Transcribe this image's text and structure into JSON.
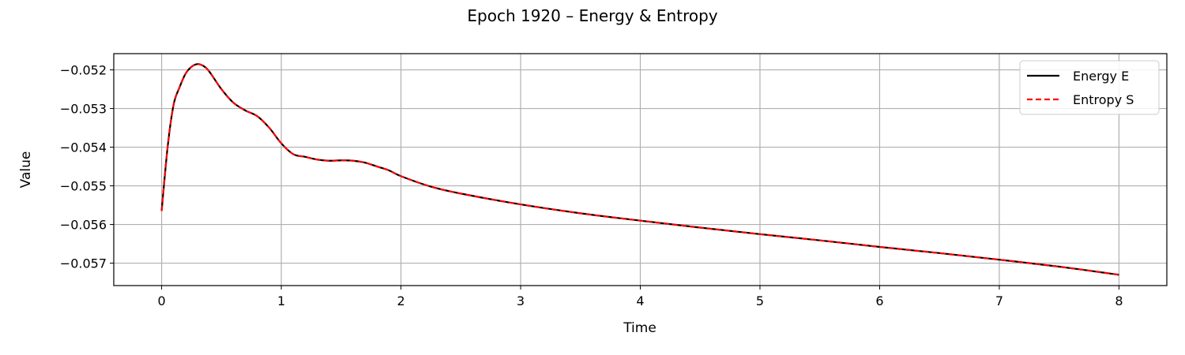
{
  "chart_data": {
    "type": "line",
    "title": "Epoch 1920 – Energy & Entropy",
    "xlabel": "Time",
    "ylabel": "Value",
    "xlim": [
      -0.4,
      8.4
    ],
    "ylim": [
      -0.05758,
      -0.05158
    ],
    "xticks": [
      0,
      1,
      2,
      3,
      4,
      5,
      6,
      7,
      8
    ],
    "xtick_labels": [
      "0",
      "1",
      "2",
      "3",
      "4",
      "5",
      "6",
      "7",
      "8"
    ],
    "yticks": [
      -0.052,
      -0.053,
      -0.054,
      -0.055,
      -0.056,
      -0.057
    ],
    "ytick_labels": [
      "−0.052",
      "−0.053",
      "−0.054",
      "−0.055",
      "−0.056",
      "−0.057"
    ],
    "grid": true,
    "legend_position": "top-right",
    "series": [
      {
        "name": "Energy E",
        "color": "#000000",
        "style": "solid",
        "x": [
          0.0,
          0.05,
          0.1,
          0.15,
          0.2,
          0.25,
          0.3,
          0.35,
          0.4,
          0.5,
          0.6,
          0.7,
          0.8,
          0.9,
          1.0,
          1.1,
          1.2,
          1.3,
          1.4,
          1.5,
          1.6,
          1.7,
          1.8,
          1.9,
          2.0,
          2.25,
          2.5,
          3.0,
          3.5,
          4.0,
          4.5,
          5.0,
          5.5,
          6.0,
          6.5,
          7.0,
          7.5,
          8.0
        ],
        "y": [
          -0.05565,
          -0.054,
          -0.0529,
          -0.05245,
          -0.0521,
          -0.05192,
          -0.05185,
          -0.0519,
          -0.05205,
          -0.0525,
          -0.05285,
          -0.05305,
          -0.0532,
          -0.0535,
          -0.0539,
          -0.05418,
          -0.05425,
          -0.05432,
          -0.05435,
          -0.05434,
          -0.05435,
          -0.0544,
          -0.0545,
          -0.0546,
          -0.05475,
          -0.05502,
          -0.0552,
          -0.05548,
          -0.05571,
          -0.0559,
          -0.05608,
          -0.05625,
          -0.05641,
          -0.05658,
          -0.05674,
          -0.05691,
          -0.05709,
          -0.0573
        ]
      },
      {
        "name": "Entropy S",
        "color": "#ff0000",
        "style": "dashed",
        "x": [
          0.0,
          0.05,
          0.1,
          0.15,
          0.2,
          0.25,
          0.3,
          0.35,
          0.4,
          0.5,
          0.6,
          0.7,
          0.8,
          0.9,
          1.0,
          1.1,
          1.2,
          1.3,
          1.4,
          1.5,
          1.6,
          1.7,
          1.8,
          1.9,
          2.0,
          2.25,
          2.5,
          3.0,
          3.5,
          4.0,
          4.5,
          5.0,
          5.5,
          6.0,
          6.5,
          7.0,
          7.5,
          8.0
        ],
        "y": [
          -0.05565,
          -0.054,
          -0.0529,
          -0.05245,
          -0.0521,
          -0.05192,
          -0.05185,
          -0.0519,
          -0.05205,
          -0.0525,
          -0.05285,
          -0.05305,
          -0.0532,
          -0.0535,
          -0.0539,
          -0.05418,
          -0.05425,
          -0.05432,
          -0.05435,
          -0.05434,
          -0.05435,
          -0.0544,
          -0.0545,
          -0.0546,
          -0.05475,
          -0.05502,
          -0.0552,
          -0.05548,
          -0.05571,
          -0.0559,
          -0.05608,
          -0.05625,
          -0.05641,
          -0.05658,
          -0.05674,
          -0.05691,
          -0.05709,
          -0.0573
        ]
      }
    ]
  }
}
